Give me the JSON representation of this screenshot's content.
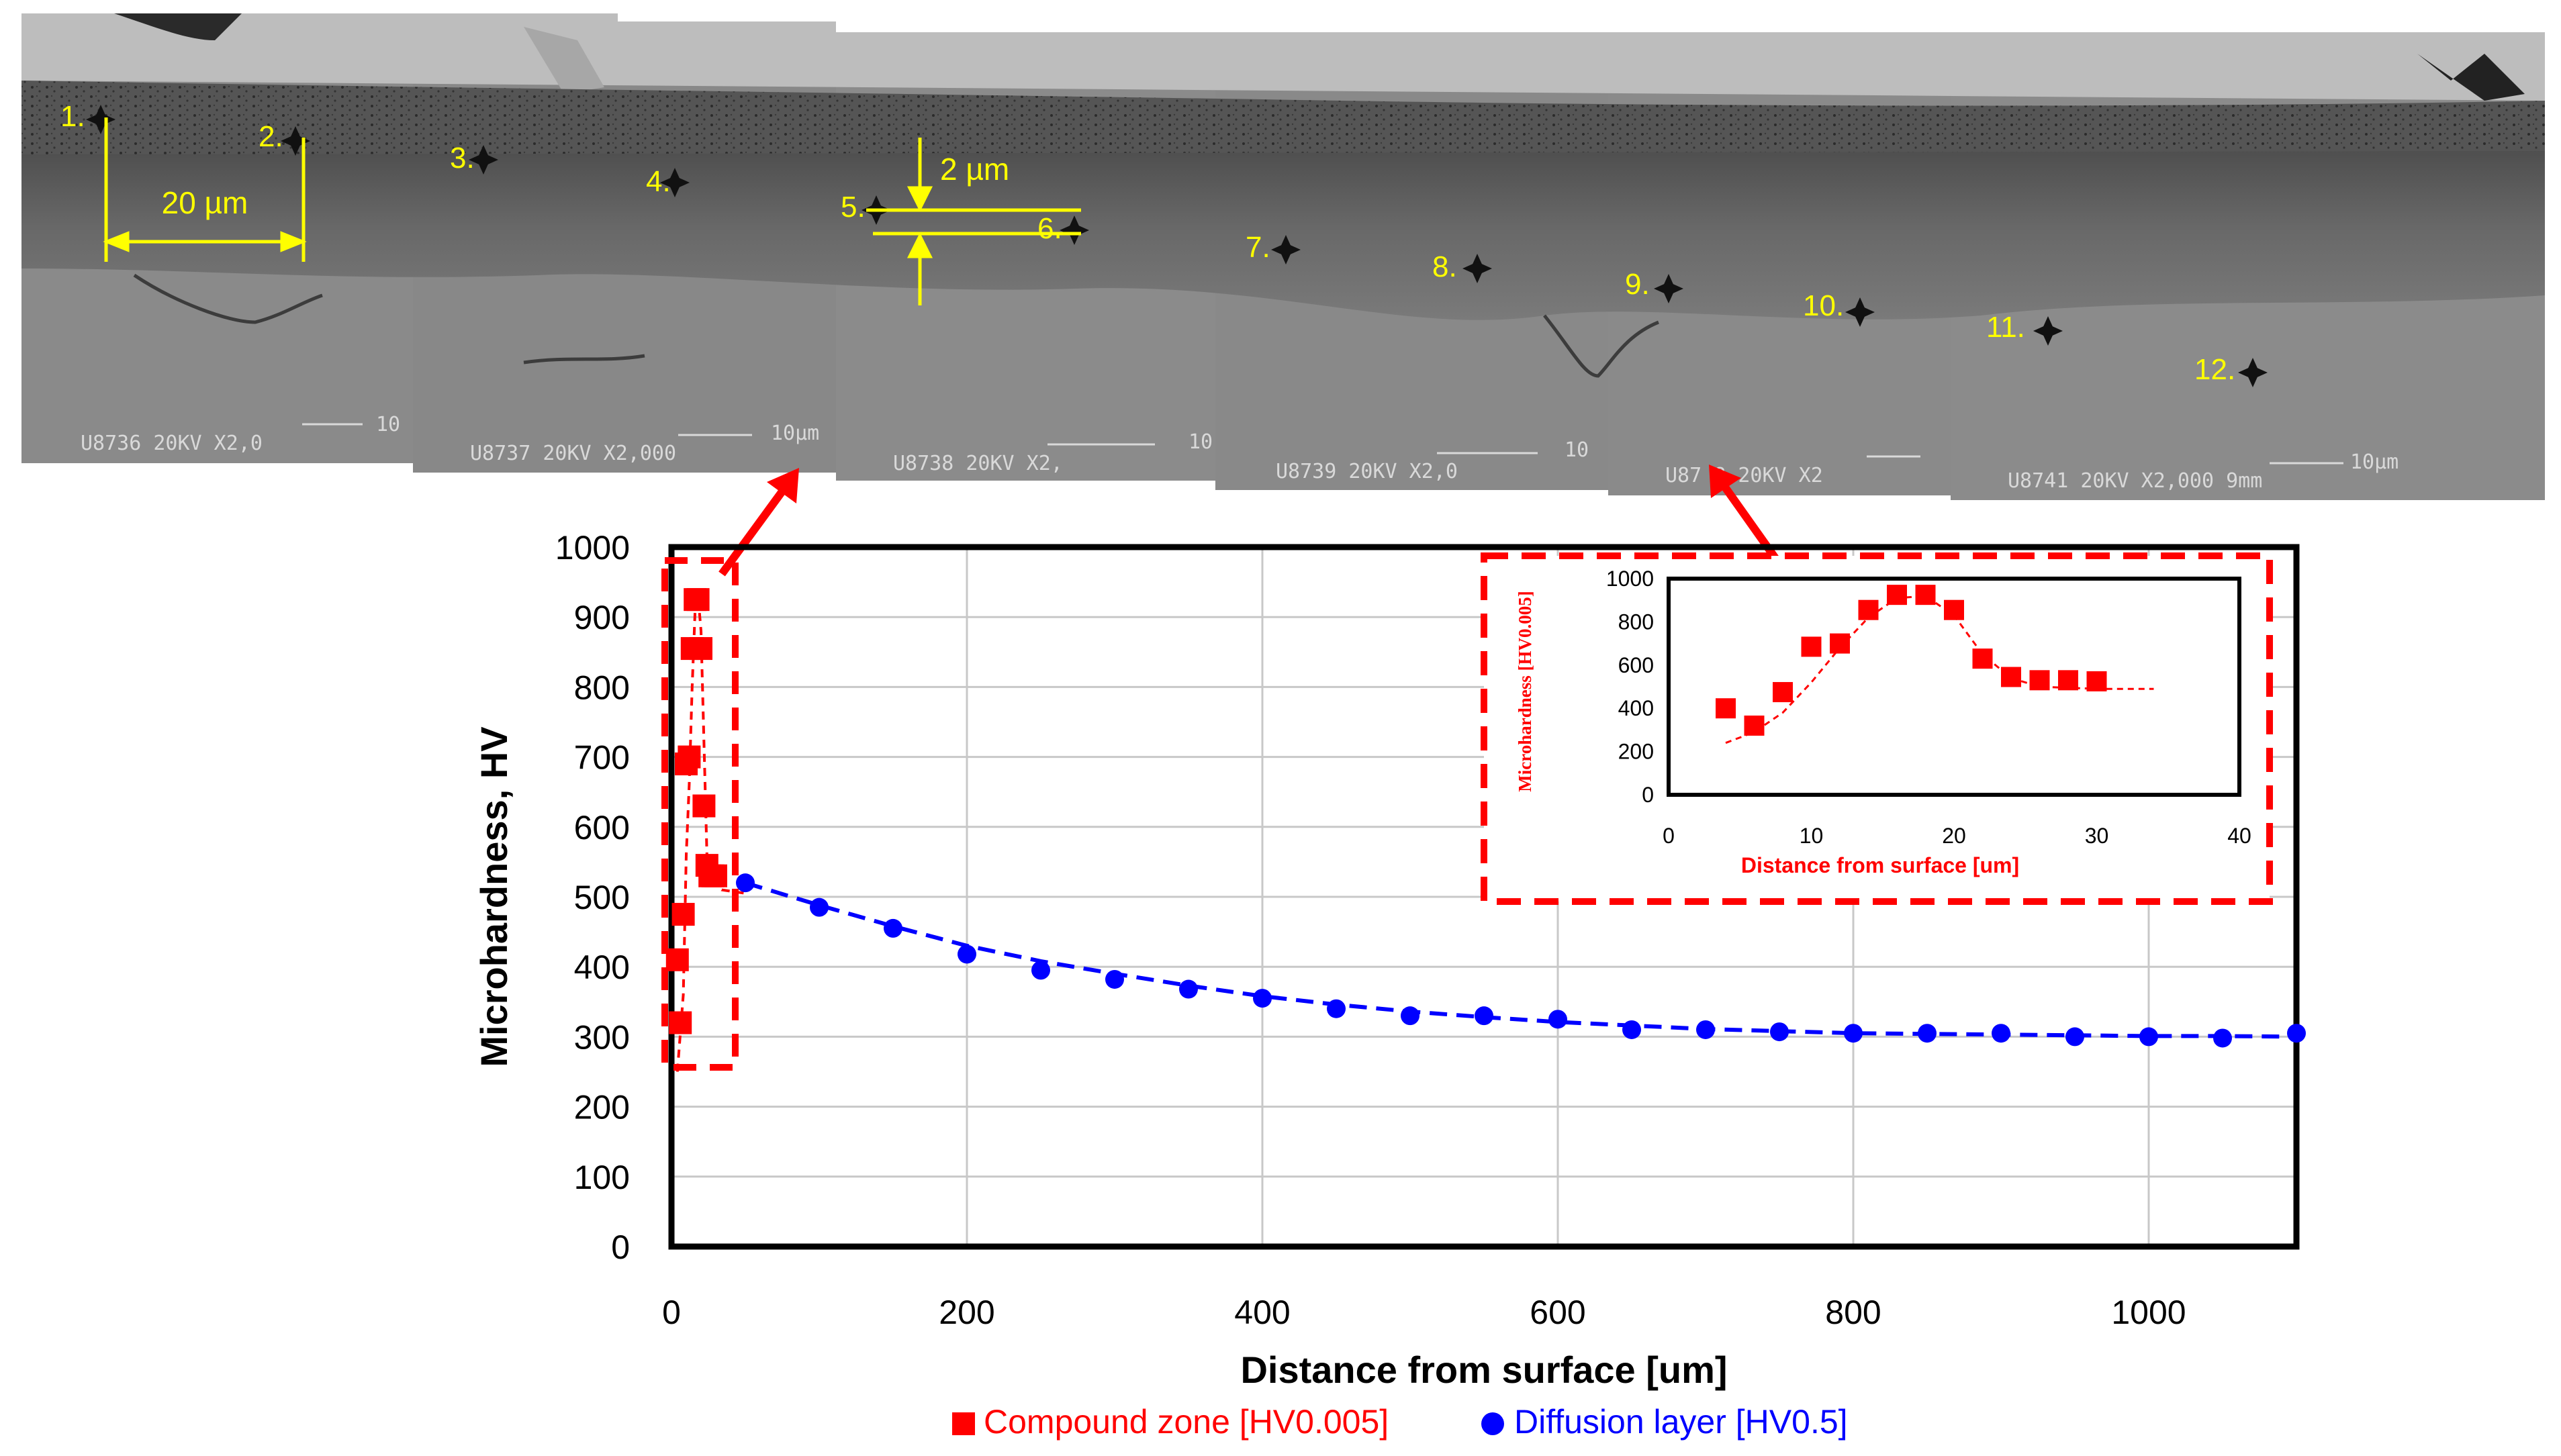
{
  "micrograph": {
    "point_labels": [
      "1.",
      "2.",
      "3.",
      "4.",
      "5.",
      "6.",
      "7.",
      "8.",
      "9.",
      "10.",
      "11.",
      "12."
    ],
    "scale_20um": "20 µm",
    "scale_2um": "2 µm",
    "sem_info": [
      "U8736   20KV   X2,0",
      "U8737   20KV   X2,000",
      "U8738   20KV   X2,",
      "U8739   20KV   X2,0",
      "U87 8   20KV   X2",
      "U8741   20KV   X2,000   9mm"
    ],
    "sem_marker_10": [
      "10",
      "10µm",
      "10",
      "10",
      "10µm"
    ]
  },
  "colors": {
    "compound": "#ff0000",
    "diffusion": "#0000ff",
    "annotation": "#ffff00",
    "arrow": "#ff0000"
  },
  "chart_data": [
    {
      "type": "scatter",
      "xlabel": "Distance from surface [um]",
      "ylabel": "Microhardness, HV",
      "xlim": [
        0,
        1100
      ],
      "ylim": [
        0,
        1000
      ],
      "xticks": [
        "0",
        "200",
        "400",
        "600",
        "800",
        "1000"
      ],
      "yticks": [
        "0",
        "100",
        "200",
        "300",
        "400",
        "500",
        "600",
        "700",
        "800",
        "900",
        "1000"
      ],
      "grid": true,
      "legend_position": "bottom",
      "series": [
        {
          "name": "Compound zone [HV0.005]",
          "marker": "square",
          "points": [
            [
              4,
              410
            ],
            [
              6,
              320
            ],
            [
              8,
              475
            ],
            [
              10,
              690
            ],
            [
              12,
              700
            ],
            [
              14,
              855
            ],
            [
              16,
              925
            ],
            [
              18,
              925
            ],
            [
              20,
              855
            ],
            [
              22,
              630
            ],
            [
              24,
              545
            ],
            [
              26,
              530
            ],
            [
              28,
              530
            ],
            [
              30,
              530
            ]
          ],
          "trend": [
            [
              4,
              250
            ],
            [
              8,
              360
            ],
            [
              10,
              560
            ],
            [
              12,
              660
            ],
            [
              14,
              800
            ],
            [
              16,
              910
            ],
            [
              18,
              930
            ],
            [
              20,
              880
            ],
            [
              22,
              720
            ],
            [
              24,
              560
            ],
            [
              28,
              520
            ],
            [
              34,
              510
            ],
            [
              50,
              505
            ]
          ]
        },
        {
          "name": "Diffusion layer [HV0.5]",
          "marker": "circle",
          "points": [
            [
              50,
              520
            ],
            [
              100,
              485
            ],
            [
              150,
              455
            ],
            [
              200,
              418
            ],
            [
              250,
              395
            ],
            [
              300,
              382
            ],
            [
              350,
              368
            ],
            [
              400,
              355
            ],
            [
              450,
              340
            ],
            [
              500,
              330
            ],
            [
              550,
              330
            ],
            [
              600,
              325
            ],
            [
              650,
              310
            ],
            [
              700,
              310
            ],
            [
              750,
              307
            ],
            [
              800,
              305
            ],
            [
              850,
              305
            ],
            [
              900,
              305
            ],
            [
              950,
              300
            ],
            [
              1000,
              300
            ],
            [
              1050,
              298
            ],
            [
              1100,
              305
            ]
          ],
          "trend": [
            [
              50,
              520
            ],
            [
              100,
              488
            ],
            [
              150,
              458
            ],
            [
              200,
              430
            ],
            [
              250,
              408
            ],
            [
              300,
              390
            ],
            [
              350,
              373
            ],
            [
              400,
              358
            ],
            [
              450,
              346
            ],
            [
              500,
              336
            ],
            [
              550,
              328
            ],
            [
              600,
              321
            ],
            [
              650,
              316
            ],
            [
              700,
              311
            ],
            [
              750,
              308
            ],
            [
              800,
              305
            ],
            [
              850,
              304
            ],
            [
              900,
              303
            ],
            [
              950,
              302
            ],
            [
              1000,
              301
            ],
            [
              1050,
              301
            ],
            [
              1100,
              300
            ]
          ]
        }
      ]
    },
    {
      "type": "scatter",
      "xlabel": "Distance from surface [um]",
      "ylabel": "Microhardness [HV0.005]",
      "xlim": [
        0,
        40
      ],
      "ylim": [
        0,
        1000
      ],
      "xticks": [
        "0",
        "10",
        "20",
        "30",
        "40"
      ],
      "yticks": [
        "0",
        "200",
        "400",
        "600",
        "800",
        "1000"
      ],
      "grid": false,
      "series": [
        {
          "marker": "square",
          "points": [
            [
              4,
              400
            ],
            [
              6,
              320
            ],
            [
              8,
              475
            ],
            [
              10,
              685
            ],
            [
              12,
              700
            ],
            [
              14,
              855
            ],
            [
              16,
              925
            ],
            [
              18,
              925
            ],
            [
              20,
              855
            ],
            [
              22,
              630
            ],
            [
              24,
              545
            ],
            [
              26,
              530
            ],
            [
              28,
              530
            ],
            [
              30,
              525
            ]
          ],
          "trend": [
            [
              4,
              240
            ],
            [
              6,
              290
            ],
            [
              8,
              380
            ],
            [
              10,
              520
            ],
            [
              12,
              680
            ],
            [
              14,
              820
            ],
            [
              16,
              910
            ],
            [
              18,
              920
            ],
            [
              20,
              830
            ],
            [
              22,
              650
            ],
            [
              24,
              540
            ],
            [
              26,
              500
            ],
            [
              30,
              490
            ],
            [
              34,
              490
            ]
          ]
        }
      ]
    }
  ]
}
